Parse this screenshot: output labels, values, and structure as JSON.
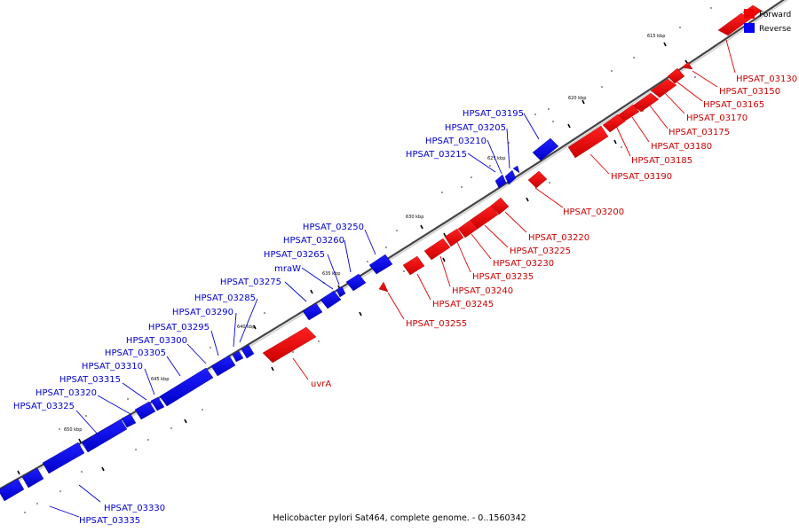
{
  "title": "Helicobacter pylori Sat464, complete genome. - 0..1560342",
  "colors": {
    "forward": "#ee0000",
    "reverse": "#0000ee",
    "forward_label": "#cc0000",
    "reverse_label": "#0000cc"
  },
  "legend": [
    {
      "label": "Forward",
      "color": "#ee0000"
    },
    {
      "label": "Reverse",
      "color": "#0000ee"
    }
  ],
  "ticks": [
    "615 kbp",
    "620 kbp",
    "625 kbp",
    "630 kbp",
    "635 kbp",
    "640 kbp",
    "645 kbp",
    "650 kbp"
  ],
  "forward_labels": [
    "HPSAT_03130",
    "HPSAT_03150",
    "HPSAT_03165",
    "HPSAT_03170",
    "HPSAT_03175",
    "HPSAT_03180",
    "HPSAT_03185",
    "HPSAT_03190",
    "HPSAT_03200",
    "HPSAT_03220",
    "HPSAT_03225",
    "HPSAT_03230",
    "HPSAT_03235",
    "HPSAT_03240",
    "HPSAT_03245",
    "HPSAT_03255",
    "uvrA"
  ],
  "reverse_labels": [
    "HPSAT_03195",
    "HPSAT_03205",
    "HPSAT_03210",
    "HPSAT_03215",
    "HPSAT_03250",
    "HPSAT_03260",
    "HPSAT_03265",
    "mraW",
    "HPSAT_03275",
    "HPSAT_03285",
    "HPSAT_03290",
    "HPSAT_03295",
    "HPSAT_03300",
    "HPSAT_03305",
    "HPSAT_03310",
    "HPSAT_03315",
    "HPSAT_03320",
    "HPSAT_03325",
    "HPSAT_03330",
    "HPSAT_03335"
  ]
}
